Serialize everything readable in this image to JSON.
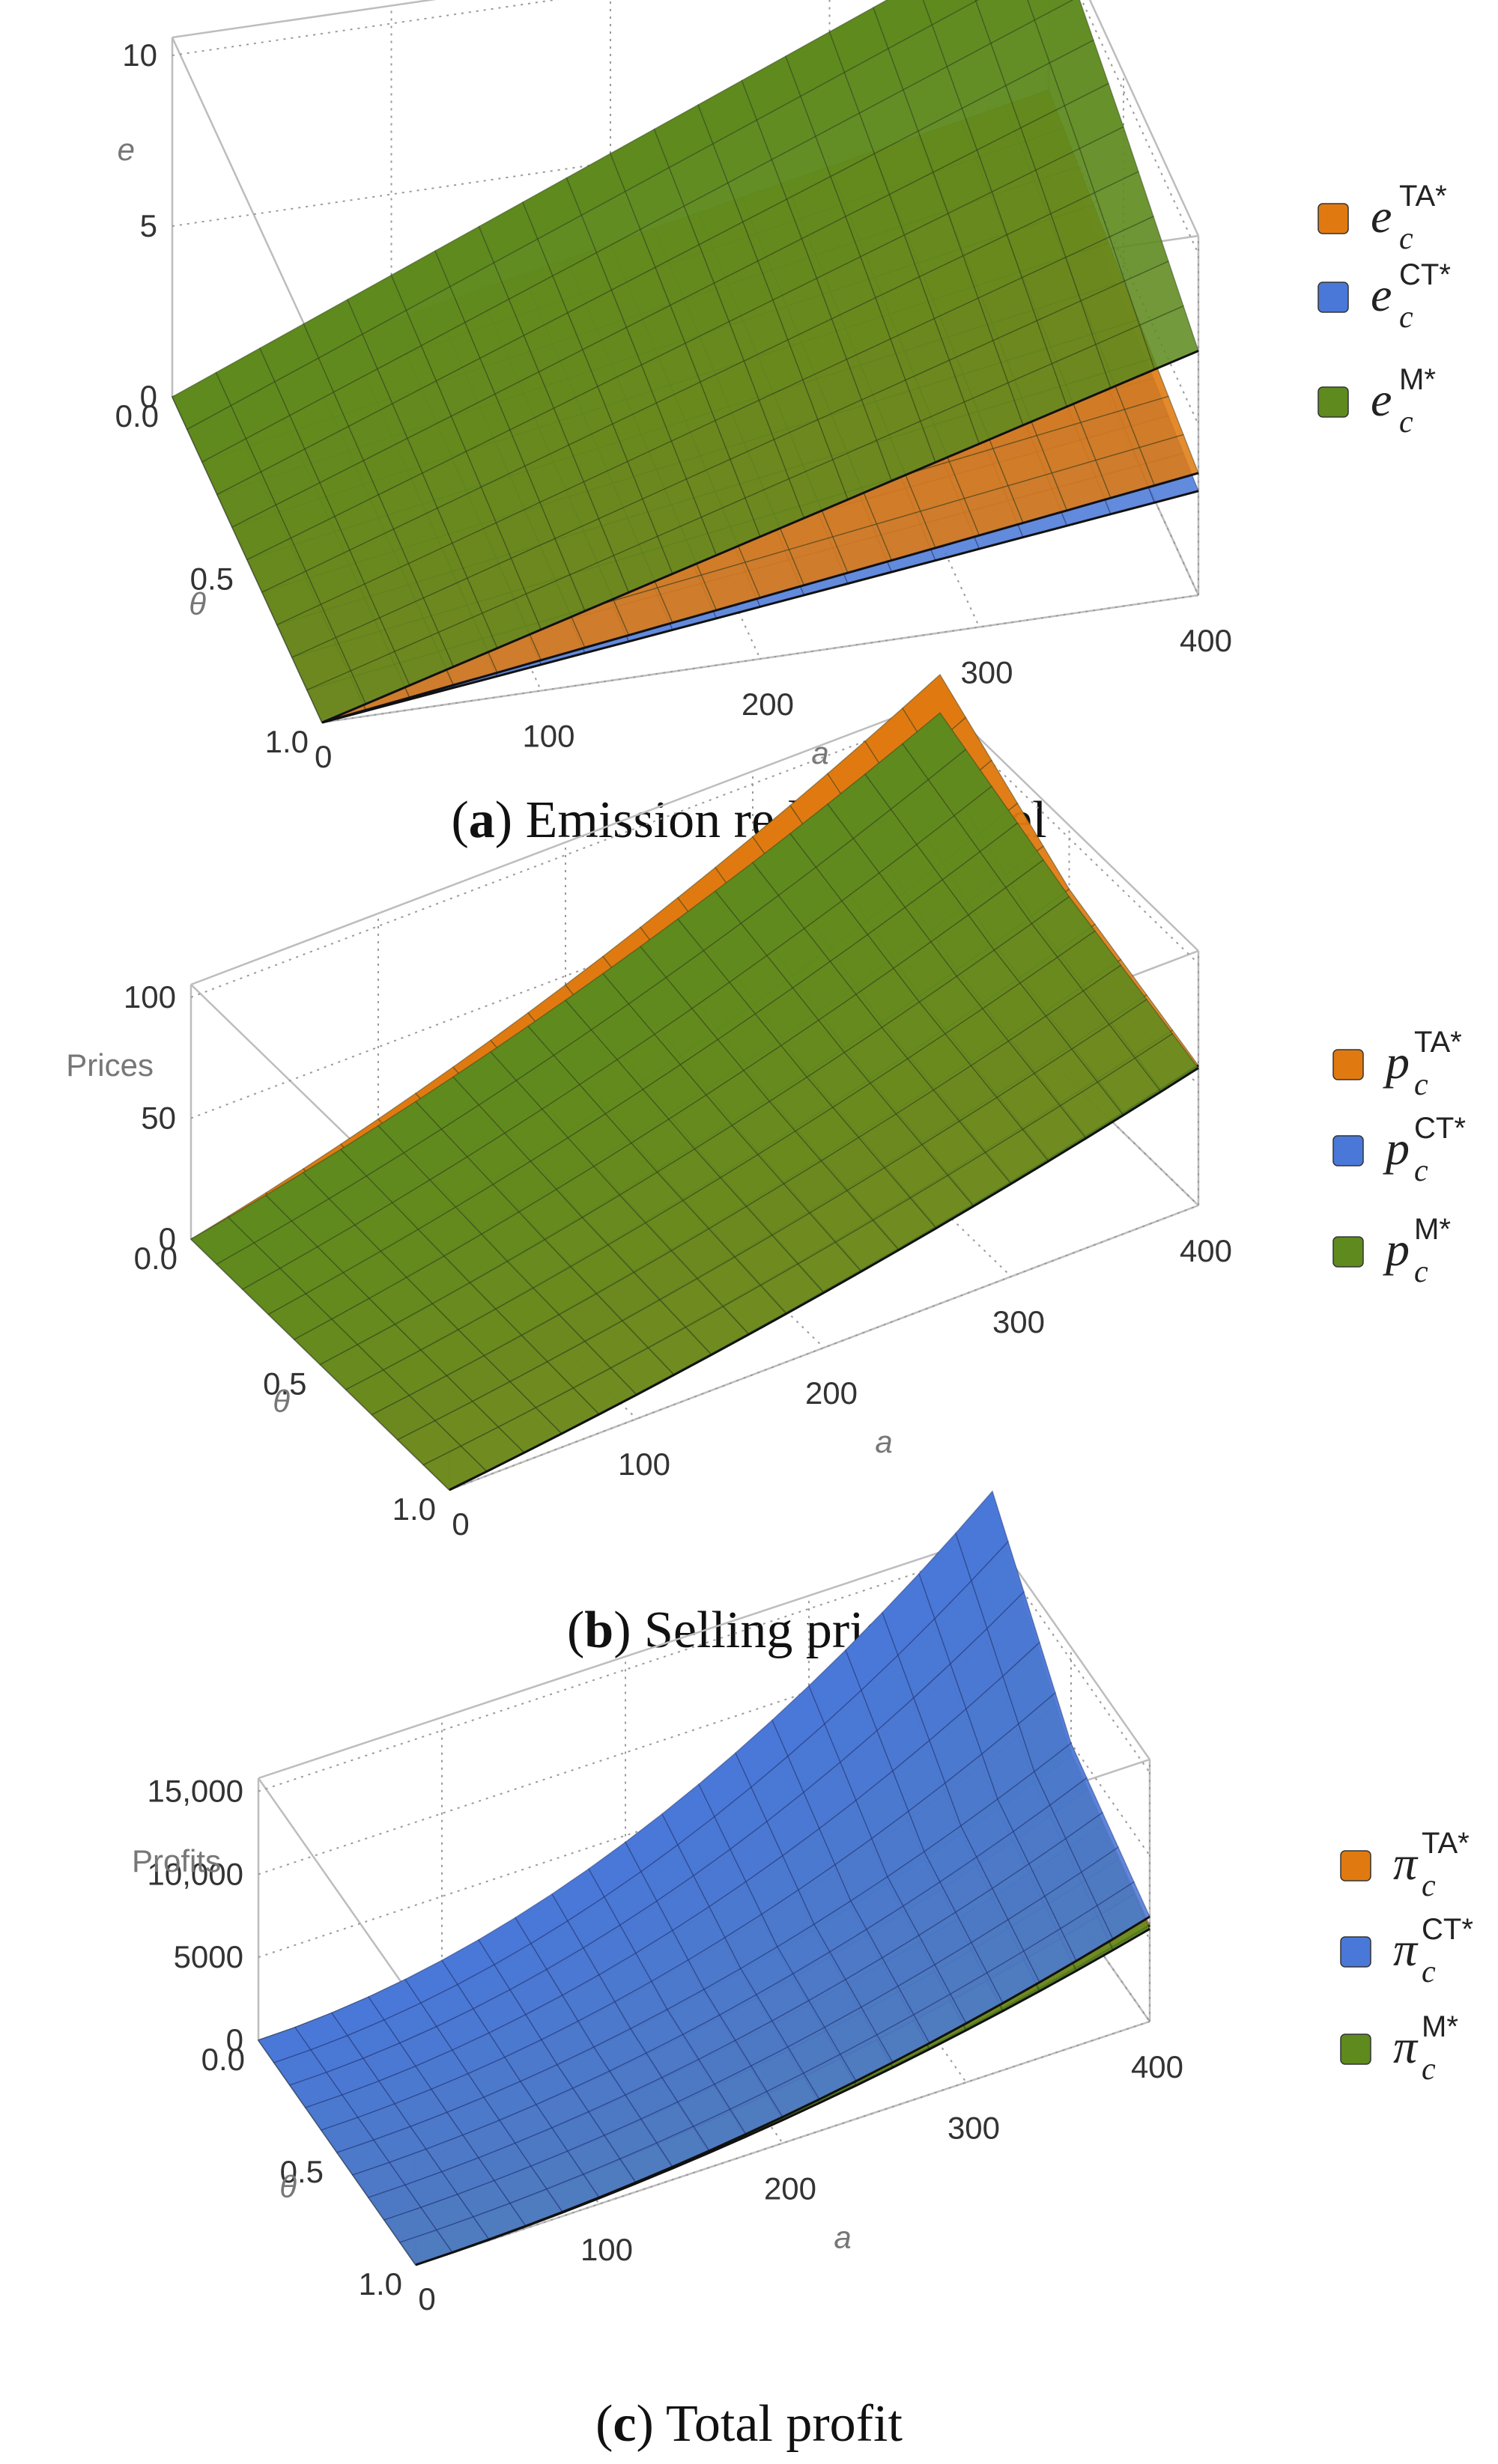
{
  "colors": {
    "TA": "#e07a10",
    "CT": "#4a78d8",
    "M": "#5e8a1e",
    "box": "#bdbdbd"
  },
  "chart_data": [
    {
      "id": "a",
      "type": "surface3d",
      "caption_label": "a",
      "caption_text": "Emission reduction level",
      "zlabel": "e",
      "xlabel": "a",
      "ylabel": "θ",
      "x_range": [
        0,
        400
      ],
      "y_range": [
        0.0,
        1.0
      ],
      "z_range": [
        0,
        10
      ],
      "x_ticks": [
        "100",
        "200",
        "300",
        "400"
      ],
      "y_ticks": [
        "0.0",
        "0.5",
        "1.0"
      ],
      "z_ticks": [
        "0",
        "5",
        "10"
      ],
      "x_origin_label": "0",
      "legend": [
        {
          "base": "e",
          "sub": "c",
          "sup": "TA*",
          "key": "TA"
        },
        {
          "base": "e",
          "sub": "c",
          "sup": "CT*",
          "key": "CT"
        },
        {
          "base": "e",
          "sub": "c",
          "sup": "M*",
          "key": "M"
        }
      ],
      "series": [
        {
          "name": "TA",
          "key": "TA",
          "z_at_a400": [
            5.0,
            4.2,
            3.4
          ],
          "z_at_a0": [
            0,
            0,
            0
          ]
        },
        {
          "name": "CT",
          "key": "CT",
          "z_at_a400": [
            4.3,
            3.6,
            2.9
          ],
          "z_at_a0": [
            0,
            0,
            0
          ]
        },
        {
          "name": "M",
          "key": "M",
          "z_at_a400": [
            10.0,
            8.5,
            6.8
          ],
          "z_at_a0": [
            0,
            0,
            0
          ]
        }
      ]
    },
    {
      "id": "b",
      "type": "surface3d",
      "caption_label": "b",
      "caption_text": "Selling prices",
      "zlabel": "Prices",
      "xlabel": "a",
      "ylabel": "θ",
      "x_range": [
        0,
        400
      ],
      "y_range": [
        0.0,
        1.0
      ],
      "z_range": [
        0,
        100
      ],
      "x_ticks": [
        "100",
        "200",
        "300",
        "400"
      ],
      "y_ticks": [
        "0.0",
        "0.5",
        "1.0"
      ],
      "z_ticks": [
        "0",
        "50",
        "100"
      ],
      "x_origin_label": "0",
      "legend": [
        {
          "base": "p",
          "sub": "c",
          "sup": "TA*",
          "key": "TA"
        },
        {
          "base": "p",
          "sub": "c",
          "sup": "CT*",
          "key": "CT"
        },
        {
          "base": "p",
          "sub": "c",
          "sup": "M*",
          "key": "M"
        }
      ],
      "series": [
        {
          "name": "TA",
          "key": "TA",
          "z_at_a400": [
            110,
            75,
            55
          ],
          "z_at_a0": [
            0,
            0,
            0
          ]
        },
        {
          "name": "CT",
          "key": "CT",
          "z_at_a400": [
            108,
            74,
            54
          ],
          "z_at_a0": [
            0,
            0,
            0
          ]
        },
        {
          "name": "M",
          "key": "M",
          "z_at_a400": [
            95,
            72,
            54
          ],
          "z_at_a0": [
            0,
            0,
            0
          ]
        }
      ]
    },
    {
      "id": "c",
      "type": "surface3d",
      "caption_label": "c",
      "caption_text": "Total profit",
      "zlabel": "Profits",
      "xlabel": "a",
      "ylabel": "θ",
      "x_range": [
        0,
        400
      ],
      "y_range": [
        0.0,
        1.0
      ],
      "z_range": [
        0,
        15000
      ],
      "x_ticks": [
        "100",
        "200",
        "300",
        "400"
      ],
      "y_ticks": [
        "0.0",
        "0.5",
        "1.0"
      ],
      "z_ticks": [
        "0",
        "5000",
        "10,000",
        "15,000"
      ],
      "x_origin_label": "0",
      "legend": [
        {
          "base": "π",
          "sub": "c",
          "sup": "TA*",
          "key": "TA"
        },
        {
          "base": "π",
          "sub": "c",
          "sup": "CT*",
          "key": "CT"
        },
        {
          "base": "π",
          "sub": "c",
          "sup": "M*",
          "key": "M"
        }
      ],
      "series": [
        {
          "name": "TA",
          "key": "TA",
          "z_at_a400": [
            17000,
            9000,
            5500
          ],
          "z_at_a0": [
            0,
            0,
            0
          ]
        },
        {
          "name": "CT",
          "key": "CT",
          "z_at_a400": [
            17500,
            9500,
            6000
          ],
          "z_at_a0": [
            0,
            0,
            0
          ]
        },
        {
          "name": "M",
          "key": "M",
          "z_at_a400": [
            16500,
            8800,
            5300
          ],
          "z_at_a0": [
            0,
            0,
            0
          ]
        }
      ]
    }
  ]
}
